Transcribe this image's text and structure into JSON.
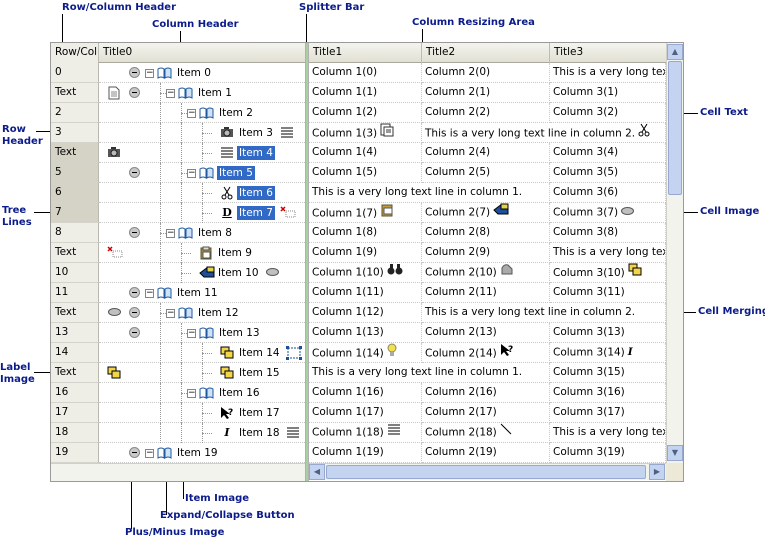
{
  "annotations": {
    "row_column_header": "Row/Column Header",
    "column_header": "Column Header",
    "splitter_bar": "Splitter Bar",
    "column_resizing_area": "Column Resizing Area",
    "cell_text": "Cell Text",
    "row_header": "Row\nHeader",
    "tree_lines": "Tree\nLines",
    "cell_image": "Cell Image",
    "cell_merging": "Cell Merging",
    "label_image": "Label\nImage",
    "item_image": "Item Image",
    "expand_collapse_button": "Expand/Collapse Button",
    "plus_minus_image": "Plus/Minus Image"
  },
  "colors": {
    "selection": "#3169c6",
    "header_bg": "#efeee6",
    "scroll": "#c4d3ef",
    "annotation": "#0b1b8a"
  },
  "header": {
    "rowcol": "Row/Col",
    "title0": "Title0",
    "title1": "Title1",
    "title2": "Title2",
    "title3": "Title3"
  },
  "rows": [
    {
      "rh": "0",
      "item": "Item 0",
      "c1": "Column 1(0)",
      "c2": "Column 2(0)",
      "c3": "This is a very long text li"
    },
    {
      "rh": "Text",
      "item": "Item 1",
      "c1": "Column 1(1)",
      "c2": "Column 2(1)",
      "c3": "Column 3(1)"
    },
    {
      "rh": "2",
      "item": "Item 2",
      "c1": "Column 1(2)",
      "c2": "Column 2(2)",
      "c3": "Column 3(2)"
    },
    {
      "rh": "3",
      "item": "Item 3",
      "c1": "Column 1(3)",
      "c23": "This is a very long text line in column 2."
    },
    {
      "rh": "Text",
      "item": "Item 4",
      "c1": "Column 1(4)",
      "c2": "Column 2(4)",
      "c3": "Column 3(4)"
    },
    {
      "rh": "5",
      "item": "Item 5",
      "c1": "Column 1(5)",
      "c2": "Column 2(5)",
      "c3": "Column 3(5)"
    },
    {
      "rh": "6",
      "item": "Item 6",
      "c12": "This is a very long text line in column 1.",
      "c3": "Column 3(6)"
    },
    {
      "rh": "7",
      "item": "Item 7",
      "c1": "Column 1(7)",
      "c2": "Column 2(7)",
      "c3": "Column 3(7)"
    },
    {
      "rh": "8",
      "item": "Item 8",
      "c1": "Column 1(8)",
      "c2": "Column 2(8)",
      "c3": "Column 3(8)"
    },
    {
      "rh": "Text",
      "item": "Item 9",
      "c1": "Column 1(9)",
      "c2": "Column 2(9)",
      "c3": "This is a very long text li"
    },
    {
      "rh": "10",
      "item": "Item 10",
      "c1": "Column 1(10)",
      "c2": "Column 2(10)",
      "c3": "Column 3(10)"
    },
    {
      "rh": "11",
      "item": "Item 11",
      "c1": "Column 1(11)",
      "c2": "Column 2(11)",
      "c3": "Column 3(11)"
    },
    {
      "rh": "Text",
      "item": "Item 12",
      "c1": "Column 1(12)",
      "c23": "This is a very long text line in column 2."
    },
    {
      "rh": "13",
      "item": "Item 13",
      "c1": "Column 1(13)",
      "c2": "Column 2(13)",
      "c3": "Column 3(13)"
    },
    {
      "rh": "14",
      "item": "Item 14",
      "c1": "Column 1(14)",
      "c2": "Column 2(14)",
      "c3": "Column 3(14)"
    },
    {
      "rh": "Text",
      "item": "Item 15",
      "c12": "This is a very long text line in column 1.",
      "c3": "Column 3(15)"
    },
    {
      "rh": "16",
      "item": "Item 16",
      "c1": "Column 1(16)",
      "c2": "Column 2(16)",
      "c3": "Column 3(16)"
    },
    {
      "rh": "17",
      "item": "Item 17",
      "c1": "Column 1(17)",
      "c2": "Column 2(17)",
      "c3": "Column 3(17)"
    },
    {
      "rh": "18",
      "item": "Item 18",
      "c1": "Column 1(18)",
      "c2": "Column 2(18)",
      "c3": "This is a very long text li"
    },
    {
      "rh": "19",
      "item": "Item 19",
      "c1": "Column 1(19)",
      "c2": "Column 2(19)",
      "c3": "Column 3(19)"
    }
  ]
}
